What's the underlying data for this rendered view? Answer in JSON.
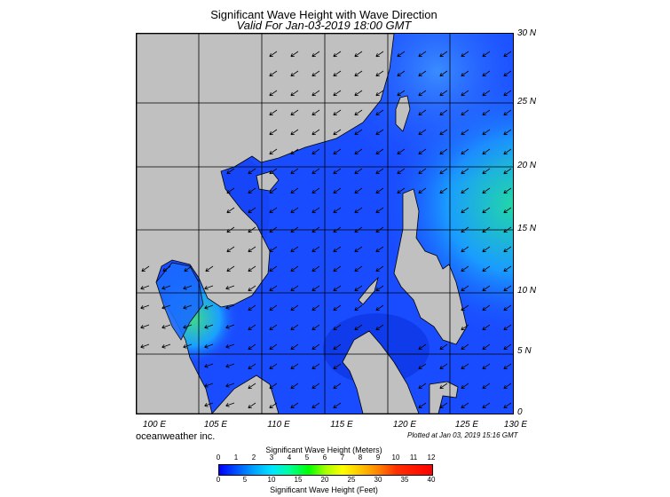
{
  "title": "Significant Wave Height with Wave Direction",
  "subtitle": "Valid For Jan-03-2019 18:00 GMT",
  "credit": "oceanweather inc.",
  "plotted": "Plotted at Jan 03, 2019 15:16 GMT",
  "lat_labels": [
    "30 N",
    "25 N",
    "20 N",
    "15 N",
    "10 N",
    "5 N",
    "0"
  ],
  "lon_labels": [
    "100 E",
    "105 E",
    "110 E",
    "115 E",
    "120 E",
    "125 E",
    "130 E"
  ],
  "colorbar": {
    "title_top": "Significant Wave Height (Meters)",
    "title_bottom": "Significant Wave Height (Feet)",
    "meters_ticks": [
      "0",
      "1",
      "2",
      "3",
      "4",
      "5",
      "6",
      "7",
      "8",
      "9",
      "10",
      "11",
      "12"
    ],
    "feet_ticks": [
      "0",
      "5",
      "10",
      "15",
      "20",
      "25",
      "30",
      "35",
      "40"
    ]
  },
  "colors": {
    "land": "#c0c0c0",
    "sea_base": "#1a4cff"
  }
}
